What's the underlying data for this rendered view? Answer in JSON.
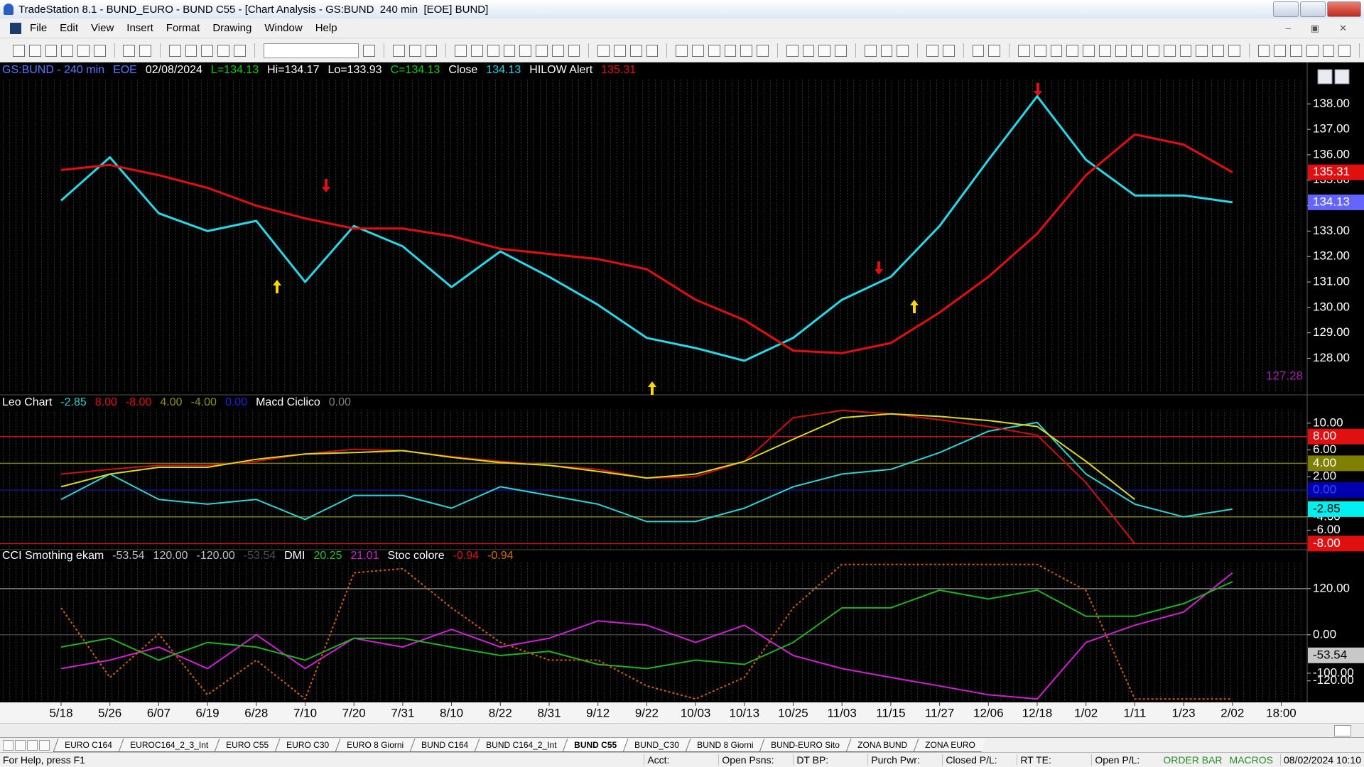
{
  "window": {
    "title": "TradeStation 8.1 - BUND_EURO - BUND C55 - [Chart Analysis - GS:BUND  240 min  [EOE] BUND]",
    "menu": [
      "File",
      "Edit",
      "View",
      "Insert",
      "Format",
      "Drawing",
      "Window",
      "Help"
    ]
  },
  "chart_data": [
    {
      "type": "line",
      "header": [
        {
          "text": "GS:BUND - 240 min",
          "color": "#5a78ff"
        },
        {
          "text": "EOE",
          "color": "#5a78ff"
        },
        {
          "text": "02/08/2024",
          "color": "#ffffff"
        },
        {
          "text": "L=134.13",
          "color": "#00d000"
        },
        {
          "text": "Hi=134.17",
          "color": "#ffffff"
        },
        {
          "text": "Lo=133.93",
          "color": "#ffffff"
        },
        {
          "text": "C=134.13",
          "color": "#00d000"
        },
        {
          "text": "Close",
          "color": "#ffffff"
        },
        {
          "text": "134.13",
          "color": "#20d0e0"
        },
        {
          "text": "HILOW Alert",
          "color": "#ffffff"
        },
        {
          "text": "135.31",
          "color": "#e01010"
        }
      ],
      "categories": [
        "5/18",
        "5/26",
        "6/07",
        "6/19",
        "6/28",
        "7/10",
        "7/20",
        "7/31",
        "8/10",
        "8/22",
        "8/31",
        "9/12",
        "9/22",
        "10/03",
        "10/13",
        "10/25",
        "11/03",
        "11/15",
        "11/27",
        "12/06",
        "12/18",
        "1/02",
        "1/11",
        "1/23",
        "2/02",
        "18:00"
      ],
      "series": [
        {
          "color": "#28d8e8",
          "values": [
            134.2,
            135.9,
            133.7,
            133.0,
            133.4,
            131.0,
            133.2,
            132.4,
            130.8,
            132.2,
            131.2,
            130.1,
            128.8,
            128.4,
            127.9,
            128.8,
            130.3,
            131.2,
            133.2,
            135.8,
            138.3,
            135.8,
            134.4,
            134.4,
            134.13,
            null
          ]
        },
        {
          "color": "#e01010",
          "values": [
            135.4,
            135.6,
            135.2,
            134.7,
            134.0,
            133.5,
            133.1,
            133.1,
            132.8,
            132.3,
            132.1,
            131.9,
            131.5,
            130.3,
            129.5,
            128.3,
            128.2,
            128.6,
            129.8,
            131.2,
            132.9,
            135.2,
            136.8,
            136.4,
            135.31,
            null
          ]
        }
      ],
      "ylim": [
        126.7,
        139.6
      ],
      "yticks": [
        {
          "value": 128,
          "label": "128.00"
        },
        {
          "value": 129,
          "label": "129.00"
        },
        {
          "value": 130,
          "label": "130.00"
        },
        {
          "value": 131,
          "label": "131.00"
        },
        {
          "value": 132,
          "label": "132.00"
        },
        {
          "value": 133,
          "label": "133.00"
        },
        {
          "value": 134,
          "label": "134.00"
        },
        {
          "value": 135,
          "label": "135.00"
        },
        {
          "value": 136,
          "label": "136.00"
        },
        {
          "value": 137,
          "label": "137.00"
        },
        {
          "value": 138,
          "label": "138.00"
        }
      ],
      "badges": [
        {
          "value": 135.31,
          "bg": "#e01010",
          "fg": "#ffffff"
        },
        {
          "value": 134.13,
          "bg": "#6464ff",
          "fg": "#ffffff"
        },
        {
          "value": 127.28,
          "fg": "#a020a0",
          "inside": true
        }
      ]
    },
    {
      "type": "line",
      "header": [
        {
          "text": "Leo Chart",
          "color": "#ffffff"
        },
        {
          "text": "-2.85",
          "color": "#20d0d0"
        },
        {
          "text": "8.00",
          "color": "#e01010"
        },
        {
          "text": "-8.00",
          "color": "#e01010"
        },
        {
          "text": "4.00",
          "color": "#909000"
        },
        {
          "text": "-4.00",
          "color": "#909000"
        },
        {
          "text": "0.00",
          "color": "#2020e0"
        },
        {
          "text": "Macd Ciclico",
          "color": "#ffffff"
        },
        {
          "text": "0.00",
          "color": "#808080"
        }
      ],
      "series": [
        {
          "color": "#2ad4d4",
          "values": [
            -1.4,
            2.4,
            -1.4,
            -2.1,
            -1.4,
            -4.4,
            -0.8,
            -0.8,
            -2.7,
            0.5,
            -0.8,
            -2.1,
            -4.7,
            -4.7,
            -2.7,
            0.5,
            2.4,
            3.1,
            5.6,
            8.8,
            10.1,
            2.4,
            -2.1,
            -4.0,
            -2.85,
            null
          ]
        },
        {
          "color": "#d01010",
          "values": [
            2.4,
            3.1,
            3.7,
            3.7,
            4.3,
            5.4,
            6.1,
            5.9,
            5.0,
            4.3,
            3.7,
            3.1,
            1.8,
            2.0,
            4.3,
            10.8,
            11.9,
            11.4,
            10.5,
            9.5,
            8.2,
            1.1,
            -8.0,
            null,
            null,
            null
          ]
        },
        {
          "color": "#d8d820",
          "values": [
            0.5,
            2.4,
            3.4,
            3.4,
            4.6,
            5.4,
            5.6,
            5.9,
            4.9,
            4.1,
            3.7,
            2.8,
            1.8,
            2.4,
            4.3,
            7.6,
            10.8,
            11.4,
            11.0,
            10.4,
            9.5,
            4.3,
            -1.4,
            null,
            null,
            null
          ]
        }
      ],
      "ylim": [
        -8.8,
        12.0
      ],
      "yticks": [
        {
          "value": 10,
          "label": "10.00"
        },
        {
          "value": 6,
          "label": "6.00"
        },
        {
          "value": 2,
          "label": "2.00"
        },
        {
          "value": -4,
          "label": "-4.00"
        },
        {
          "value": -6,
          "label": "-6.00"
        }
      ],
      "hlines": [
        {
          "value": 8,
          "color": "#d01010"
        },
        {
          "value": 4,
          "color": "#808000"
        },
        {
          "value": 0,
          "color": "#1010a0"
        },
        {
          "value": -4,
          "color": "#808000"
        },
        {
          "value": -8,
          "color": "#d01010"
        }
      ],
      "badges": [
        {
          "value": 8,
          "label": "8.00",
          "bg": "#e01010",
          "fg": "#ffffff"
        },
        {
          "value": 4,
          "label": "4.00",
          "bg": "#808000",
          "fg": "#ffffff"
        },
        {
          "value": 0,
          "label": "0.00",
          "bg": "#0000b0",
          "fg": "#3a4aff"
        },
        {
          "value": -2.85,
          "bg": "#00f0f0",
          "fg": "#000000"
        },
        {
          "value": -8,
          "label": "-8.00",
          "bg": "#e01010",
          "fg": "#ffffff"
        }
      ]
    },
    {
      "type": "line",
      "header": [
        {
          "text": "CCI Smothing ekam",
          "color": "#ffffff"
        },
        {
          "text": "-53.54",
          "color": "#c0c0c0"
        },
        {
          "text": "120.00",
          "color": "#c0c0c0"
        },
        {
          "text": "-120.00",
          "color": "#c0c0c0"
        },
        {
          "text": "-53.54",
          "color": "#505050"
        },
        {
          "text": "DMI",
          "color": "#ffffff"
        },
        {
          "text": "20.25",
          "color": "#20c020"
        },
        {
          "text": "21.01",
          "color": "#d020d0"
        },
        {
          "text": "Stoc colore",
          "color": "#ffffff"
        },
        {
          "text": "-0.94",
          "color": "#e01010"
        },
        {
          "text": "-0.94",
          "color": "#d07000"
        }
      ],
      "series": [
        {
          "color": "#d020d0",
          "values": [
            -88,
            -66,
            -32,
            -88,
            0,
            -88,
            -9,
            -32,
            14,
            -32,
            -9,
            36,
            25,
            -20,
            25,
            -54,
            -88,
            -111,
            -133,
            -156,
            -167,
            -20,
            25,
            59,
            161,
            null
          ]
        },
        {
          "color": "#20b020",
          "values": [
            -32,
            -9,
            -66,
            -20,
            -32,
            -66,
            -9,
            -9,
            -32,
            -54,
            -43,
            -77,
            -88,
            -66,
            -77,
            -20,
            70,
            70,
            116,
            93,
            116,
            48,
            48,
            81,
            138,
            null
          ]
        },
        {
          "color": "#d06000",
          "dash": true,
          "values": [
            70,
            -111,
            2,
            -156,
            -66,
            -167,
            161,
            172,
            70,
            -20,
            -66,
            -66,
            -133,
            -167,
            -111,
            70,
            183,
            183,
            183,
            183,
            183,
            115,
            -167,
            -167,
            -167,
            null
          ]
        }
      ],
      "ylim": [
        -174,
        188
      ],
      "yticks": [
        {
          "value": 120,
          "label": "120.00"
        },
        {
          "value": 0,
          "label": "0.00"
        },
        {
          "value": -100,
          "label": "-100.00"
        },
        {
          "value": -120,
          "label": "-120.00"
        }
      ],
      "hlines": [
        {
          "value": 120,
          "color": "#808080"
        },
        {
          "value": 0,
          "color": "#404040"
        }
      ],
      "badges": [
        {
          "value": -53.54,
          "bg": "#c8c8c8",
          "fg": "#000000"
        }
      ]
    }
  ],
  "tabs": [
    "EURO C164",
    "EUROC164_2_3_Int",
    "EURO C55",
    "EURO C30",
    "EURO 8 Giorni",
    "BUND C164",
    "BUND C164_2_Int",
    "BUND C55",
    "BUND_C30",
    "BUND 8 Giorni",
    "BUND-EURO Sito",
    "ZONA BUND",
    "ZONA EURO"
  ],
  "active_tab": 7,
  "status": {
    "help": "For Help, press F1",
    "fields": [
      "Acct:",
      "Open Psns:",
      "DT BP:",
      "Purch Pwr:",
      "Closed P/L:",
      "RT TE:",
      "Open P/L:"
    ],
    "flags": [
      "ORDER BAR",
      "MACROS"
    ],
    "clock": "08/02/2024 10:10"
  }
}
